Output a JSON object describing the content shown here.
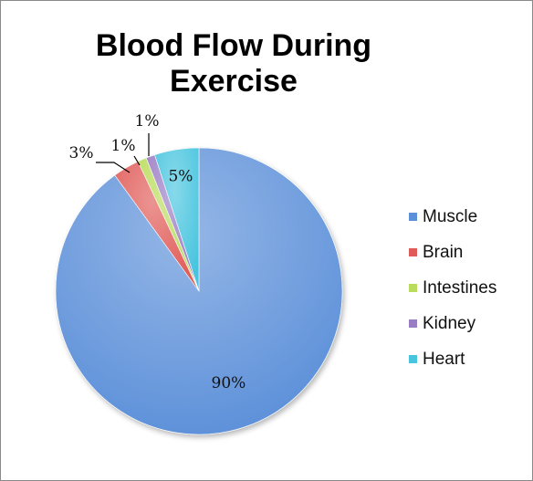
{
  "chart_data": {
    "type": "pie",
    "title_lines": [
      "Blood Flow During",
      "Exercise"
    ],
    "slices": [
      {
        "label": "Muscle",
        "value": 90,
        "display": "90%",
        "color": "#5b8fd9"
      },
      {
        "label": "Brain",
        "value": 3,
        "display": "3%",
        "color": "#e05a57"
      },
      {
        "label": "Intestines",
        "value": 1,
        "display": "1%",
        "color": "#b9dc5c"
      },
      {
        "label": "Kidney",
        "value": 1,
        "display": "1%",
        "color": "#9a7cc4"
      },
      {
        "label": "Heart",
        "value": 5,
        "display": "5%",
        "color": "#47c4de"
      }
    ],
    "legend_position": "right"
  }
}
